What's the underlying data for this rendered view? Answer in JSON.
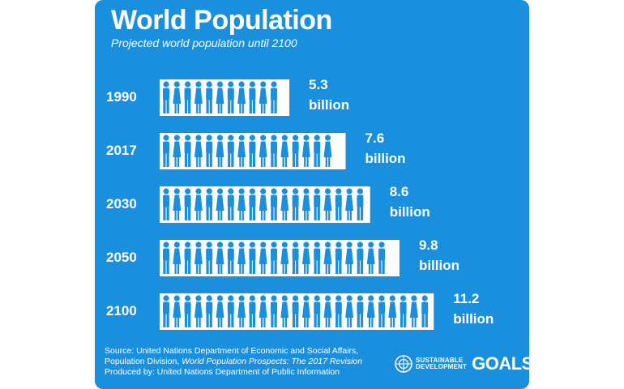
{
  "header": {
    "title": "World Population",
    "subtitle": "Projected world population until 2100"
  },
  "chart_data": {
    "type": "bar",
    "title": "World Population",
    "subtitle": "Projected world population until 2100",
    "orientation": "horizontal",
    "categories": [
      "1990",
      "2017",
      "2030",
      "2050",
      "2100"
    ],
    "values": [
      5.3,
      7.6,
      8.6,
      9.8,
      11.2
    ],
    "value_labels": [
      "5.3\nbillion",
      "7.6\nbillion",
      "8.6\nbillion",
      "9.8\nbillion",
      "11.2\nbillion"
    ],
    "unit": "billion",
    "legend": "none",
    "grid": false
  },
  "footer": {
    "source_line1": "Source: United Nations Department of Economic and Social Affairs,",
    "source_line2_prefix": "Population Division, ",
    "source_line2_italic": "World Population Prospects: The 2017 Revision",
    "produced_by": "Produced by: United Nations Department of Public Information"
  },
  "branding": {
    "sdg_line1": "SUSTAINABLE",
    "sdg_line2": "DEVELOPMENT",
    "sdg_goals": "GOALS",
    "logo_icon": "un-emblem-icon"
  },
  "colors": {
    "background": "#1a8fde",
    "figure": "#ffffff",
    "text": "#ffffff"
  }
}
